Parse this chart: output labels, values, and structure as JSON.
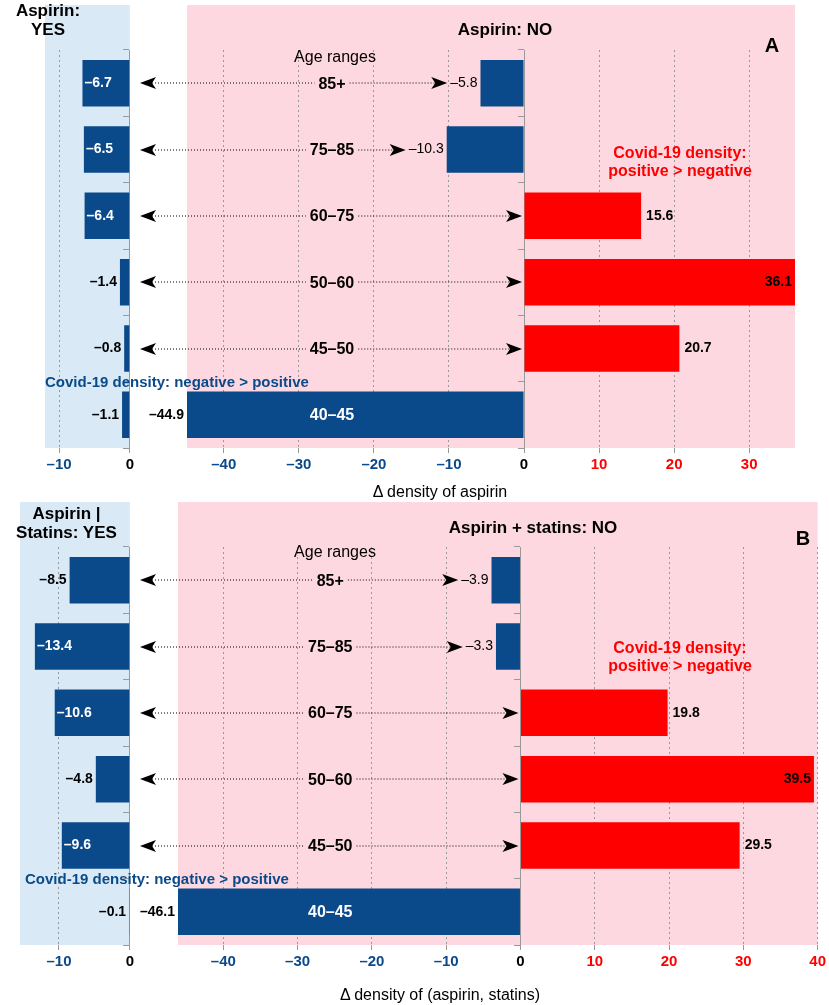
{
  "chart_data": [
    {
      "type": "bar",
      "orientation": "horizontal",
      "title": "Aspirin: YES",
      "categories": [
        null,
        null,
        null,
        null,
        null,
        null
      ],
      "tick_labels": "x",
      "values": [
        -6.7,
        -6.5,
        -6.4,
        -1.4,
        -0.8,
        -1.1
      ],
      "colors": [
        "#0b4a8a",
        "#0b4a8a",
        "#0b4a8a",
        "#0b4a8a",
        "#0b4a8a",
        "#0b4a8a"
      ],
      "value_labels": [
        "–6.7",
        "–6.5",
        "–6.4",
        "–1.4",
        "–0.8",
        "–1.1"
      ],
      "xlim": [
        -12,
        0
      ],
      "xticks": [
        {
          "value": -10,
          "label": "–10"
        },
        0
      ],
      "grid": "x",
      "legend": false,
      "annotations": [
        "Covid-19 density: negative > positive"
      ]
    },
    {
      "type": "bar",
      "orientation": "horizontal",
      "title": "Aspirin: NO",
      "xlabel": "Δ density of aspirin",
      "categories": [
        "85+",
        "75–85",
        "60–75",
        "50–60",
        "45–50",
        "40–45"
      ],
      "values": [
        -5.8,
        -10.3,
        15.6,
        36.1,
        20.7,
        -44.9
      ],
      "colors": [
        "#0b4a8a",
        "#0b4a8a",
        "#ff0000",
        "#ff0000",
        "#ff0000",
        "#0b4a8a"
      ],
      "value_labels": [
        "–5.8",
        "–10.3",
        "15.6",
        "36.1",
        "20.7",
        "–44.9"
      ],
      "xlim": [
        -44.9,
        36.1
      ],
      "xticks": [
        {
          "value": -40,
          "label": "–40"
        },
        {
          "value": -30,
          "label": "–30"
        },
        {
          "value": -20,
          "label": "–20"
        },
        {
          "value": -10,
          "label": "–10"
        },
        0,
        10,
        20,
        30
      ],
      "grid": "x",
      "legend": false,
      "annotations": [
        "A",
        "Age ranges",
        "Covid-19 density: positive > negative"
      ]
    },
    {
      "type": "bar",
      "orientation": "horizontal",
      "title": "Aspirin | Statins: YES",
      "categories": [
        null,
        null,
        null,
        null,
        null,
        null
      ],
      "tick_labels": "x",
      "values": [
        -8.5,
        -13.4,
        -10.6,
        -4.8,
        -9.6,
        -0.1
      ],
      "colors": [
        "#0b4a8a",
        "#0b4a8a",
        "#0b4a8a",
        "#0b4a8a",
        "#0b4a8a",
        "#0b4a8a"
      ],
      "value_labels": [
        "–8.5",
        "–13.4",
        "–10.6",
        "–4.8",
        "–9.6",
        "–0.1"
      ],
      "xlim": [
        -15.5,
        0
      ],
      "xticks": [
        {
          "value": -10,
          "label": "–10"
        },
        0
      ],
      "grid": "x",
      "legend": false,
      "annotations": [
        "Covid-19 density: negative > positive"
      ]
    },
    {
      "type": "bar",
      "orientation": "horizontal",
      "title": "Aspirin + statins: NO",
      "xlabel": "Δ density of (aspirin, statins)",
      "categories": [
        "85+",
        "75–85",
        "60–75",
        "50–60",
        "45–50",
        "40–45"
      ],
      "values": [
        -3.9,
        -3.3,
        19.8,
        39.5,
        29.5,
        -46.1
      ],
      "colors": [
        "#0b4a8a",
        "#0b4a8a",
        "#ff0000",
        "#ff0000",
        "#ff0000",
        "#0b4a8a"
      ],
      "value_labels": [
        "–3.9",
        "–3.3",
        "19.8",
        "39.5",
        "29.5",
        "–46.1"
      ],
      "xlim": [
        -46.1,
        40
      ],
      "xticks": [
        {
          "value": -40,
          "label": "–40"
        },
        {
          "value": -30,
          "label": "–30"
        },
        {
          "value": -20,
          "label": "–20"
        },
        {
          "value": -10,
          "label": "–10"
        },
        0,
        10,
        20,
        30,
        40
      ],
      "grid": "x",
      "legend": false,
      "annotations": [
        "B",
        "Age ranges",
        "Covid-19 density: positive > negative"
      ]
    }
  ]
}
